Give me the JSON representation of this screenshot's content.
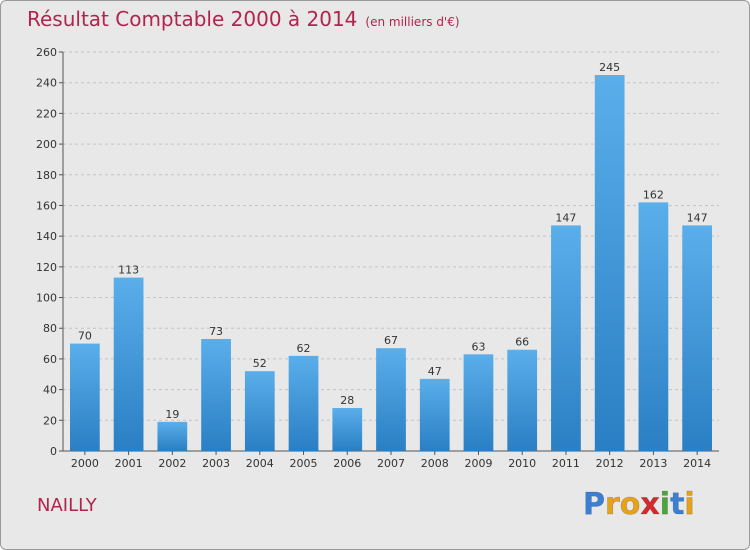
{
  "header": {
    "title": "Résultat Comptable 2000 à 2014",
    "subtitle": "(en milliers d'€)"
  },
  "commune": "NAILLY",
  "logo": {
    "text": "Proxiti",
    "letters": [
      {
        "char": "P",
        "color": "#3b7fd4"
      },
      {
        "char": "r",
        "color": "#e8a21a"
      },
      {
        "char": "o",
        "color": "#e8a21a"
      },
      {
        "char": "x",
        "color": "#d6292c"
      },
      {
        "char": "i",
        "color": "#4aa63a"
      },
      {
        "char": "t",
        "color": "#3b7fd4"
      },
      {
        "char": "i",
        "color": "#e8a21a"
      }
    ]
  },
  "colors": {
    "accent": "#b2244e",
    "bar_light": "#5aaeea",
    "bar_dark": "#2a7fc4",
    "background": "#e8e8e8"
  },
  "chart_data": {
    "type": "bar",
    "title": "Résultat Comptable 2000 à 2014",
    "subtitle": "(en milliers d'€)",
    "xlabel": "",
    "ylabel": "",
    "categories": [
      "2000",
      "2001",
      "2002",
      "2003",
      "2004",
      "2005",
      "2006",
      "2007",
      "2008",
      "2009",
      "2010",
      "2011",
      "2012",
      "2013",
      "2014"
    ],
    "values": [
      70,
      113,
      19,
      73,
      52,
      62,
      28,
      67,
      47,
      63,
      66,
      147,
      245,
      162,
      147
    ],
    "ylim": [
      0,
      260
    ],
    "yticks": [
      0,
      20,
      40,
      60,
      80,
      100,
      120,
      140,
      160,
      180,
      200,
      220,
      240,
      260
    ],
    "grid": true,
    "legend": "none"
  }
}
